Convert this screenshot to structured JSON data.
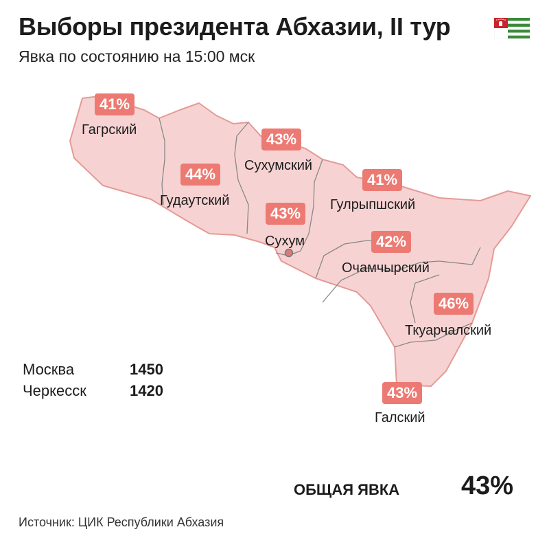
{
  "header": {
    "title": "Выборы президента Абхазии, II тур",
    "subtitle": "Явка по состоянию на 15:00 мск"
  },
  "regions": [
    {
      "name": "Гагрский",
      "turnout": "41%"
    },
    {
      "name": "Гудаутский",
      "turnout": "44%"
    },
    {
      "name": "Сухумский",
      "turnout": "43%"
    },
    {
      "name": "Сухум",
      "turnout": "43%"
    },
    {
      "name": "Гулрыпшский",
      "turnout": "41%"
    },
    {
      "name": "Очамчырский",
      "turnout": "42%"
    },
    {
      "name": "Ткуарчалский",
      "turnout": "46%"
    },
    {
      "name": "Галский",
      "turnout": "43%"
    }
  ],
  "diaspora": [
    {
      "city": "Москва",
      "count": "1450"
    },
    {
      "city": "Черкесск",
      "count": "1420"
    }
  ],
  "total": {
    "label": "ОБЩАЯ ЯВКА",
    "value": "43%"
  },
  "source": "Источник: ЦИК Республики Абхазия",
  "colors": {
    "map_fill": "#f6d3d2",
    "map_border": "#e59a96",
    "district_line": "#888888",
    "badge": "#ec7a73",
    "flag_green": "#3a8a3a",
    "flag_red": "#c8252c"
  }
}
